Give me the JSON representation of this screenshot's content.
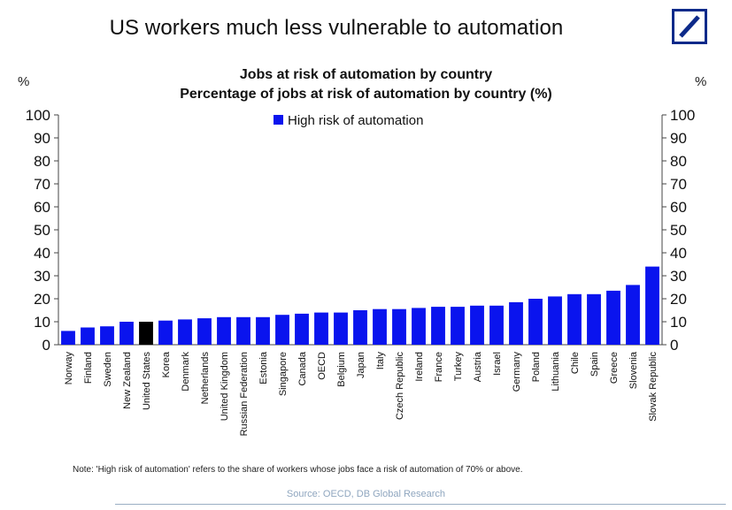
{
  "page": {
    "title": "US workers much less vulnerable to automation",
    "unit_left": "%",
    "unit_right": "%",
    "note": "Note: 'High risk of automation' refers to the share of workers whose jobs face a risk of automation of 70% or above.",
    "source": "Source: OECD, DB Global Research"
  },
  "logo": {
    "icon": "deutsche-bank-logo-icon",
    "color": "#0d2a8a"
  },
  "chart_data": {
    "type": "bar",
    "title": "Jobs at risk of automation by country",
    "subtitle": "Percentage of jobs at risk of automation by country (%)",
    "xlabel": "",
    "ylabel": "%",
    "ylim": [
      0,
      100
    ],
    "yticks": [
      0,
      10,
      20,
      30,
      40,
      50,
      60,
      70,
      80,
      90,
      100
    ],
    "grid": false,
    "legend_position": "top-center",
    "highlight_category": "United States",
    "colors": {
      "bar": "#0a14ee",
      "highlight": "#000000",
      "axis": "#444444"
    },
    "categories": [
      "Norway",
      "Finland",
      "Sweden",
      "New Zealand",
      "United States",
      "Korea",
      "Denmark",
      "Netherlands",
      "United Kingdom",
      "Russian Federation",
      "Estonia",
      "Singapore",
      "Canada",
      "OECD",
      "Belgium",
      "Japan",
      "Italy",
      "Czech Republic",
      "Ireland",
      "France",
      "Turkey",
      "Austria",
      "Israel",
      "Germany",
      "Poland",
      "Lithuania",
      "Chile",
      "Spain",
      "Greece",
      "Slovenia",
      "Slovak Republic"
    ],
    "series": [
      {
        "name": "High risk of automation",
        "values": [
          6,
          7.5,
          8,
          10,
          10,
          10.5,
          11,
          11.5,
          12,
          12,
          12,
          13,
          13.5,
          14,
          14,
          15,
          15.5,
          15.5,
          16,
          16.5,
          16.5,
          17,
          17,
          18.5,
          20,
          21,
          22,
          22,
          23.5,
          26,
          34
        ]
      }
    ]
  }
}
